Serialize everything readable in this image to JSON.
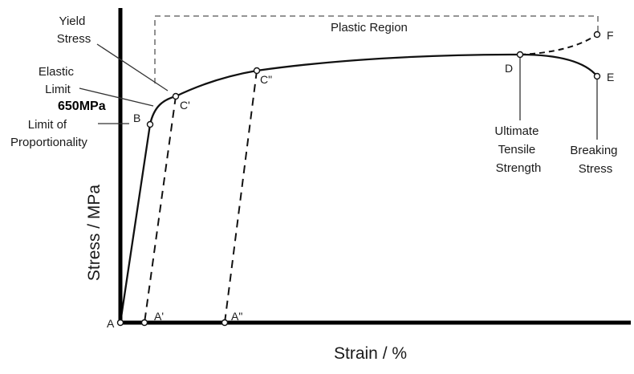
{
  "axes": {
    "x_label": "Strain / %",
    "y_label": "Stress / MPa"
  },
  "annotations": {
    "plastic_region": "Plastic Region",
    "yield_stress": [
      "Yield",
      "Stress"
    ],
    "elastic_limit": [
      "Elastic",
      "Limit"
    ],
    "value_650": "650MPa",
    "limit_of_proportionality": [
      "Limit of",
      "Proportionality"
    ],
    "ultimate_tensile_strength": [
      "Ultimate",
      "Tensile",
      "Strength"
    ],
    "breaking_stress": [
      "Breaking",
      "Stress"
    ]
  },
  "points": {
    "A": "A",
    "A1": "A'",
    "A2": "A\"",
    "B": "B",
    "C1": "C'",
    "C2": "C\"",
    "D": "D",
    "E": "E",
    "F": "F"
  },
  "colors": {
    "line": "#111111",
    "axis": "#000000",
    "leader": "#333333",
    "marker_fill": "#ffffff"
  }
}
